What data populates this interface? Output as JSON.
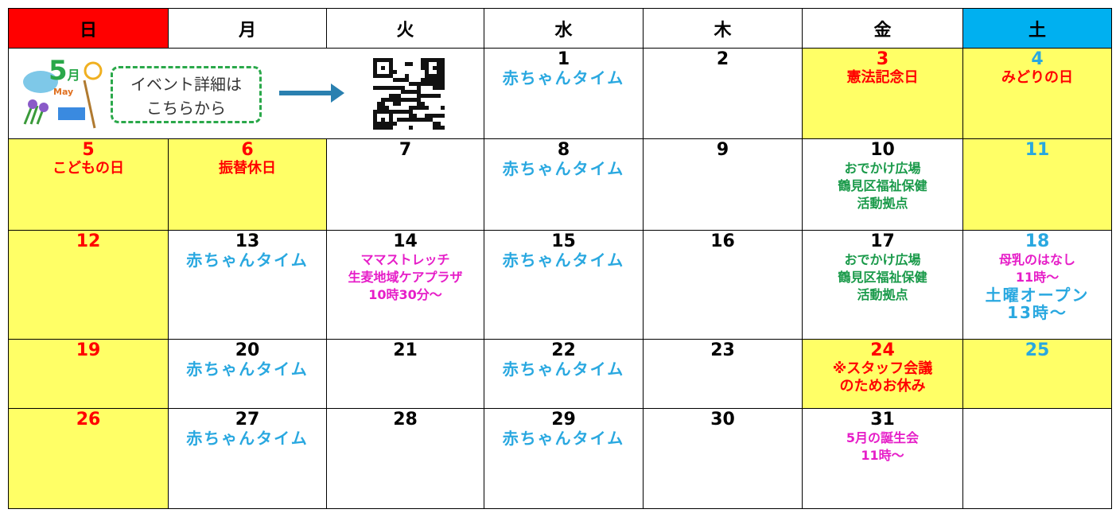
{
  "header": [
    "日",
    "月",
    "火",
    "水",
    "木",
    "金",
    "土"
  ],
  "header_colors": [
    "#ff0000",
    "#ffffff",
    "#ffffff",
    "#ffffff",
    "#ffffff",
    "#ffffff",
    "#00b0f0"
  ],
  "banner": {
    "icon": {
      "number": "5",
      "unit": "月",
      "sub": "May"
    },
    "text": [
      "イベント詳細は",
      "こちらから"
    ]
  },
  "weeks": [
    [
      {
        "day": 1,
        "events": [
          {
            "text": "赤ちゃんタイム",
            "color": "#29a8e0"
          }
        ]
      },
      {
        "day": 2
      },
      {
        "day": 3,
        "day_color": "#ff0000",
        "bg": "#ffff66",
        "events": [
          {
            "text": "憲法記念日",
            "color": "#ff0000"
          }
        ]
      },
      {
        "day": 4,
        "day_color": "#29a8e0",
        "bg": "#ffff66",
        "events": [
          {
            "text": "みどりの日",
            "color": "#ff0000"
          }
        ]
      }
    ],
    [
      {
        "day": 5,
        "day_color": "#ff0000",
        "bg": "#ffff66",
        "events": [
          {
            "text": "こどもの日",
            "color": "#ff0000"
          }
        ]
      },
      {
        "day": 6,
        "day_color": "#ff0000",
        "bg": "#ffff66",
        "events": [
          {
            "text": "振替休日",
            "color": "#ff0000"
          }
        ]
      },
      {
        "day": 7
      },
      {
        "day": 8,
        "events": [
          {
            "text": "赤ちゃんタイム",
            "color": "#29a8e0"
          }
        ]
      },
      {
        "day": 9
      },
      {
        "day": 10,
        "events": [
          {
            "text": "おでかけ広場",
            "color": "#1a9a4a"
          },
          {
            "text": "鶴見区福祉保健",
            "color": "#1a9a4a"
          },
          {
            "text": "活動拠点",
            "color": "#1a9a4a"
          }
        ]
      },
      {
        "day": 11,
        "day_color": "#29a8e0",
        "bg": "#ffff66"
      }
    ],
    [
      {
        "day": 12,
        "day_color": "#ff0000",
        "bg": "#ffff66"
      },
      {
        "day": 13,
        "events": [
          {
            "text": "赤ちゃんタイム",
            "color": "#29a8e0"
          }
        ]
      },
      {
        "day": 14,
        "events": [
          {
            "text": "ママストレッチ",
            "color": "#e61ec8"
          },
          {
            "text": "生麦地域ケアプラザ",
            "color": "#e61ec8"
          },
          {
            "text": "10時30分～",
            "color": "#e61ec8"
          }
        ]
      },
      {
        "day": 15,
        "events": [
          {
            "text": "赤ちゃんタイム",
            "color": "#29a8e0"
          }
        ]
      },
      {
        "day": 16
      },
      {
        "day": 17,
        "events": [
          {
            "text": "おでかけ広場",
            "color": "#1a9a4a"
          },
          {
            "text": "鶴見区福祉保健",
            "color": "#1a9a4a"
          },
          {
            "text": "活動拠点",
            "color": "#1a9a4a"
          }
        ]
      },
      {
        "day": 18,
        "day_color": "#29a8e0",
        "events": [
          {
            "text": "母乳のはなし",
            "color": "#e61ec8"
          },
          {
            "text": "11時～",
            "color": "#e61ec8"
          },
          {
            "text": "土曜オープン",
            "color": "#29a8e0"
          },
          {
            "text": "13時～",
            "color": "#29a8e0"
          }
        ]
      }
    ],
    [
      {
        "day": 19,
        "day_color": "#ff0000",
        "bg": "#ffff66"
      },
      {
        "day": 20,
        "events": [
          {
            "text": "赤ちゃんタイム",
            "color": "#29a8e0"
          }
        ]
      },
      {
        "day": 21
      },
      {
        "day": 22,
        "events": [
          {
            "text": "赤ちゃんタイム",
            "color": "#29a8e0"
          }
        ]
      },
      {
        "day": 23
      },
      {
        "day": 24,
        "day_color": "#ff0000",
        "bg": "#ffff66",
        "events": [
          {
            "text": "※スタッフ会議",
            "color": "#ff0000"
          },
          {
            "text": "のためお休み",
            "color": "#ff0000"
          }
        ]
      },
      {
        "day": 25,
        "day_color": "#29a8e0",
        "bg": "#ffff66"
      }
    ],
    [
      {
        "day": 26,
        "day_color": "#ff0000",
        "bg": "#ffff66"
      },
      {
        "day": 27,
        "events": [
          {
            "text": "赤ちゃんタイム",
            "color": "#29a8e0"
          }
        ]
      },
      {
        "day": 28
      },
      {
        "day": 29,
        "events": [
          {
            "text": "赤ちゃんタイム",
            "color": "#29a8e0"
          }
        ]
      },
      {
        "day": 30
      },
      {
        "day": 31,
        "events": [
          {
            "text": "5月の誕生会",
            "color": "#e61ec8"
          },
          {
            "text": "11時～",
            "color": "#e61ec8"
          }
        ]
      }
    ]
  ]
}
